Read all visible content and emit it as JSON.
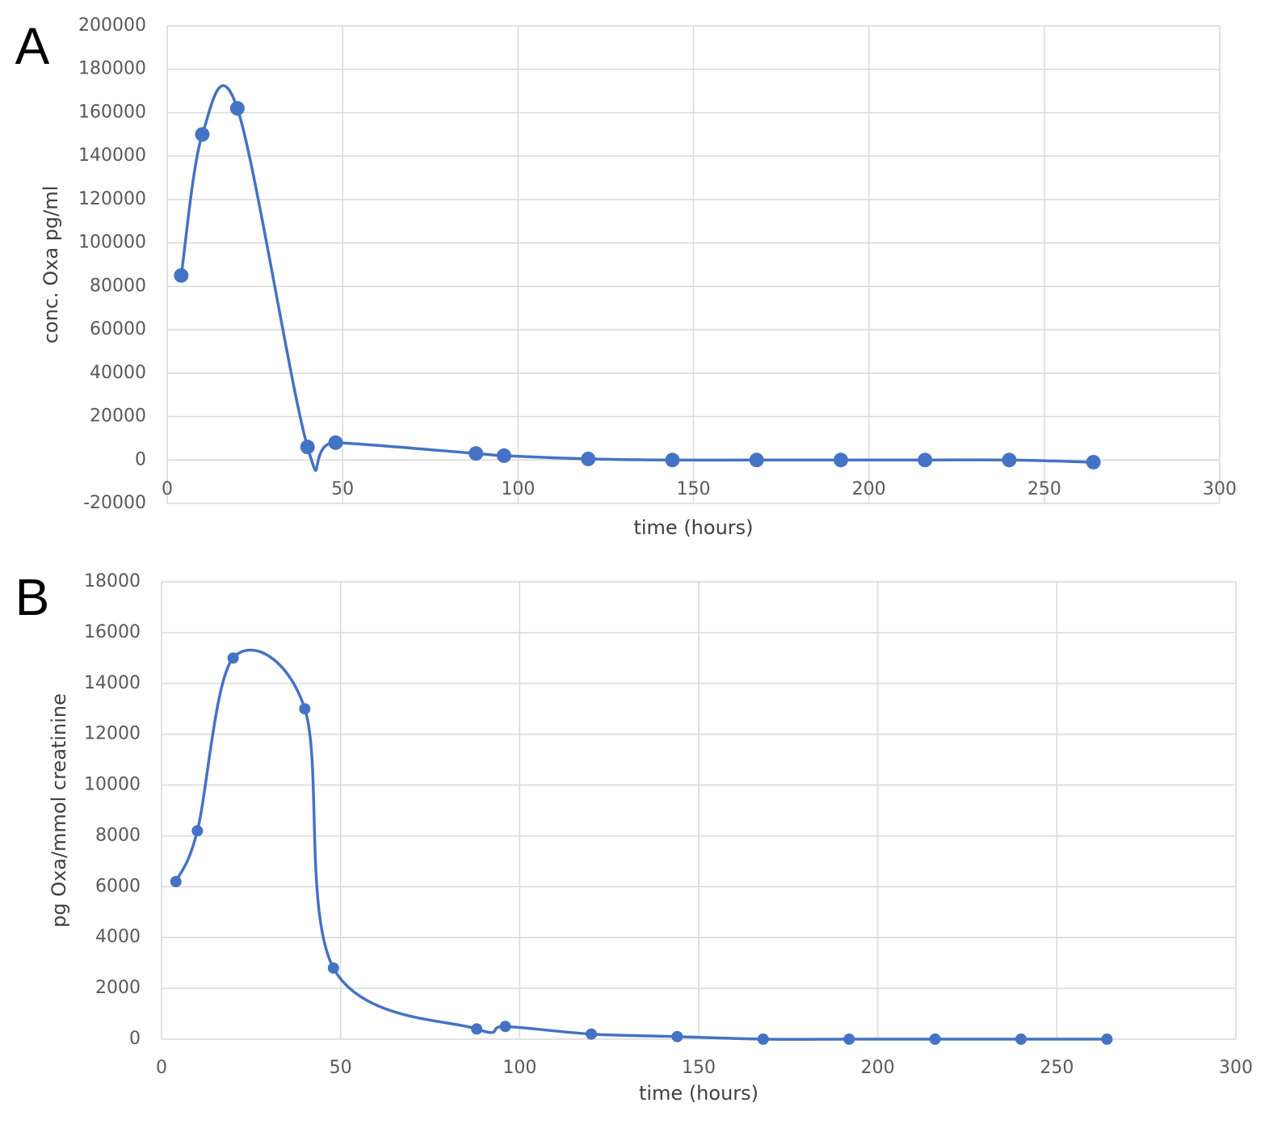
{
  "chart_data": [
    {
      "type": "line",
      "panel_label": "A",
      "xlabel": "time (hours)",
      "ylabel": "conc. Oxa  pg/ml",
      "x": [
        4,
        10,
        20,
        40,
        48,
        88,
        96,
        120,
        144,
        168,
        192,
        216,
        240,
        264
      ],
      "series": [
        {
          "color": "#4472c4",
          "values": [
            85000,
            150000,
            162000,
            6000,
            8000,
            3000,
            2000,
            500,
            0,
            0,
            0,
            0,
            0,
            -1000
          ]
        }
      ],
      "xlim": [
        0,
        300
      ],
      "xticks": [
        0,
        50,
        100,
        150,
        200,
        250,
        300
      ],
      "ylim": [
        -20000,
        200000
      ],
      "yticks": [
        -20000,
        0,
        20000,
        40000,
        60000,
        80000,
        100000,
        120000,
        140000,
        160000,
        180000,
        200000
      ],
      "grid": true,
      "smooth": true,
      "markers": true
    },
    {
      "type": "line",
      "panel_label": "B",
      "xlabel": "time (hours)",
      "ylabel": "pg Oxa/mmol  creatinine",
      "x": [
        4,
        10,
        20,
        40,
        48,
        88,
        96,
        120,
        144,
        168,
        192,
        216,
        240,
        264
      ],
      "series": [
        {
          "color": "#4472c4",
          "values": [
            6200,
            8200,
            15000,
            13000,
            2800,
            400,
            500,
            200,
            100,
            0,
            0,
            0,
            0,
            0
          ]
        }
      ],
      "xlim": [
        0,
        300
      ],
      "xticks": [
        0,
        50,
        100,
        150,
        200,
        250,
        300
      ],
      "ylim": [
        0,
        18000
      ],
      "yticks": [
        0,
        2000,
        4000,
        6000,
        8000,
        10000,
        12000,
        14000,
        16000,
        18000
      ],
      "grid": true,
      "smooth": true,
      "markers": true
    }
  ]
}
